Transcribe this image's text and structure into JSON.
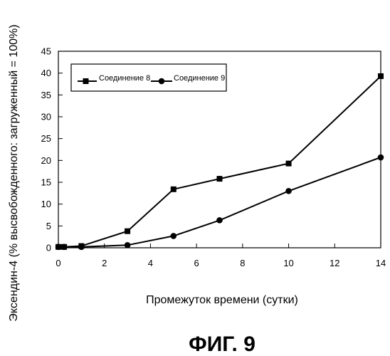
{
  "figure_caption": "ФИГ. 9",
  "chart_data": {
    "type": "line",
    "title": "",
    "xlabel": "Промежуток времени (сутки)",
    "ylabel": "Эксендин-4 (% высвобожденного: загруженный = 100%)",
    "xlim": [
      0,
      14
    ],
    "ylim": [
      0,
      45
    ],
    "x_ticks": [
      "0",
      "2",
      "4",
      "6",
      "8",
      "10",
      "12",
      "14"
    ],
    "y_ticks": [
      "0",
      "5",
      "10",
      "15",
      "20",
      "25",
      "30",
      "35",
      "40",
      "45"
    ],
    "grid": false,
    "legend_position": "top-left",
    "series": [
      {
        "name": "Соединение 8",
        "marker": "square",
        "color": "#000000",
        "x": [
          0,
          0.25,
          1,
          3,
          5,
          7,
          10,
          14
        ],
        "y": [
          0.2,
          0.2,
          0.4,
          3.8,
          13.4,
          15.8,
          19.3,
          39.3
        ]
      },
      {
        "name": "Соединение 9",
        "marker": "circle",
        "color": "#000000",
        "x": [
          0,
          0.25,
          1,
          3,
          5,
          7,
          10,
          14
        ],
        "y": [
          0.2,
          0.2,
          0.2,
          0.6,
          2.7,
          6.3,
          13.0,
          20.7
        ]
      }
    ]
  }
}
